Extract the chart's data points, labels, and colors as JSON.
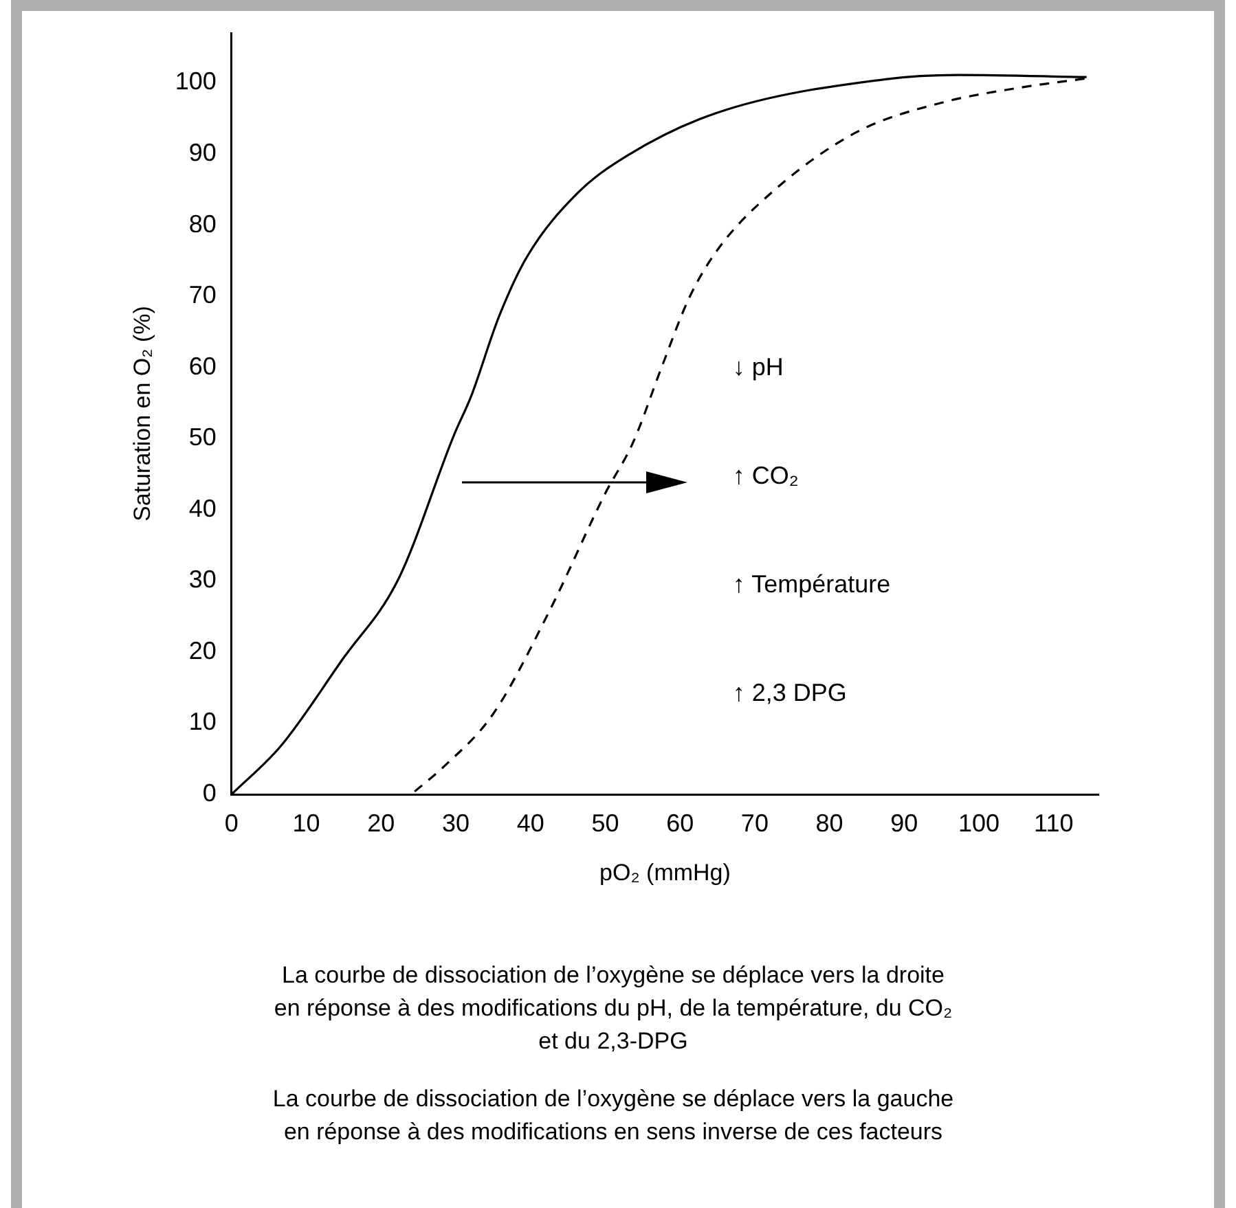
{
  "chart_data": {
    "type": "line",
    "xlabel": "pO₂ (mmHg)",
    "ylabel": "Saturation en O₂ (%)",
    "xlim": [
      0,
      116
    ],
    "ylim": [
      0,
      107
    ],
    "xticks": [
      0,
      10,
      20,
      30,
      40,
      50,
      60,
      70,
      80,
      90,
      100,
      110
    ],
    "yticks": [
      0,
      10,
      20,
      30,
      40,
      50,
      60,
      70,
      80,
      90,
      100
    ],
    "grid": false,
    "legend": false,
    "marker": "none",
    "series": [
      {
        "color": "#000000",
        "line_style": "solid",
        "x": [
          0,
          6.6,
          14.8,
          22.3,
          29.8,
          32,
          35.8,
          39.5,
          46.3,
          53,
          65,
          87.5,
          97.2,
          114.4
        ],
        "values": [
          0,
          6.8,
          18.9,
          30.2,
          50.6,
          55.8,
          67.2,
          75.5,
          84.5,
          89.8,
          95.8,
          100.5,
          101.1,
          100.8
        ]
      },
      {
        "color": "#000000",
        "line_style": "dashed",
        "x": [
          24.5,
          28.3,
          35,
          42.5,
          50,
          53.7,
          57.5,
          61.2,
          65,
          72.5,
          83.7,
          95,
          106,
          115
        ],
        "values": [
          0.4,
          3.8,
          11.3,
          25.7,
          42.3,
          49.4,
          59.9,
          69.7,
          76.5,
          84.8,
          93.1,
          97.2,
          99.4,
          100.7
        ]
      }
    ],
    "annotations": [
      "↓ pH",
      "↑ CO₂",
      "↑ Température",
      "↑ 2,3 DPG",
      "La courbe de dissociation de l’oxygène se déplace vers la droite en réponse à des modifications du pH, de la température, du CO₂ et du 2,3-DPG",
      "La courbe de dissociation de l’oxygène se déplace vers la gauche en réponse à des modifications en sens inverse de ces facteurs"
    ]
  }
}
